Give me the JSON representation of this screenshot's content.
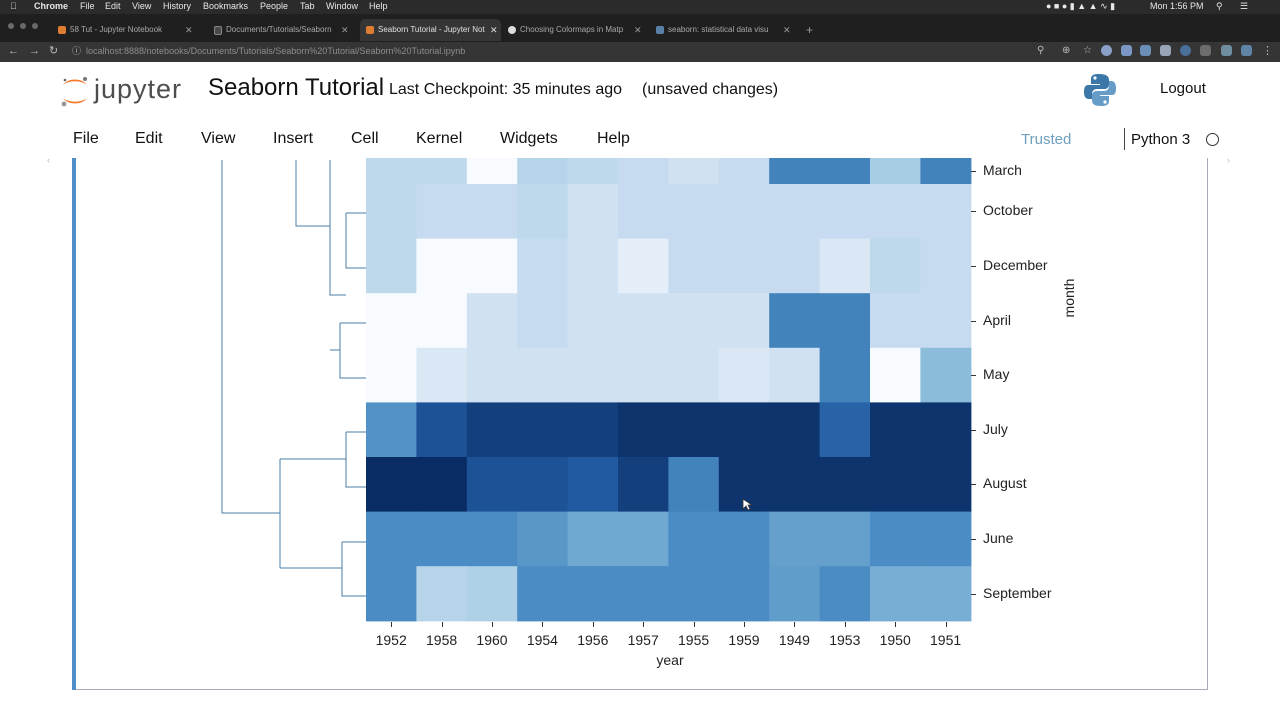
{
  "menubar": {
    "app": "Chrome",
    "items": [
      "File",
      "Edit",
      "View",
      "History",
      "Bookmarks",
      "People",
      "Tab",
      "Window",
      "Help"
    ],
    "clock": "Mon 1:56 PM"
  },
  "tabs": [
    {
      "title": "58 Tut - Jupyter Notebook",
      "active": false
    },
    {
      "title": "Documents/Tutorials/Seaborn",
      "active": false
    },
    {
      "title": "Seaborn Tutorial - Jupyter Not",
      "active": true
    },
    {
      "title": "Choosing Colormaps in Matp",
      "active": false
    },
    {
      "title": "seaborn: statistical data visu",
      "active": false
    }
  ],
  "browser": {
    "url": "localhost:8888/notebooks/Documents/Tutorials/Seaborn%20Tutorial/Seaborn%20Tutorial.ipynb",
    "new_tab": "+"
  },
  "jupyter": {
    "logo_text": "jupyter",
    "notebook_title": "Seaborn Tutorial",
    "checkpoint": "Last Checkpoint: 35 minutes ago",
    "save_status": "(unsaved changes)",
    "logout": "Logout",
    "menu": [
      "File",
      "Edit",
      "View",
      "Insert",
      "Cell",
      "Kernel",
      "Widgets",
      "Help"
    ],
    "trusted": "Trusted",
    "kernel": "Python 3"
  },
  "chart_data": {
    "type": "heatmap",
    "variant": "clustermap (row dendrogram)",
    "colormap": "Blues",
    "xlabel": "year",
    "ylabel": "month",
    "x_tick_labels": [
      "1952",
      "1958",
      "1960",
      "1954",
      "1956",
      "1957",
      "1955",
      "1959",
      "1949",
      "1953",
      "1950",
      "1951"
    ],
    "rows": [
      {
        "label": "March",
        "values": [
          0.3,
          0.3,
          0.0,
          0.35,
          0.3,
          0.25,
          0.2,
          0.25,
          0.75,
          0.75,
          0.45,
          0.75
        ]
      },
      {
        "label": "October",
        "values": [
          0.3,
          0.25,
          0.25,
          0.3,
          0.2,
          0.25,
          0.25,
          0.25,
          0.25,
          0.25,
          0.25,
          0.25
        ]
      },
      {
        "label": "December",
        "values": [
          0.3,
          0.0,
          0.0,
          0.25,
          0.2,
          0.1,
          0.25,
          0.25,
          0.25,
          0.15,
          0.3,
          0.25
        ]
      },
      {
        "label": "April",
        "values": [
          0.0,
          0.0,
          0.2,
          0.25,
          0.2,
          0.2,
          0.2,
          0.2,
          0.75,
          0.75,
          0.25,
          0.25
        ]
      },
      {
        "label": "May",
        "values": [
          0.0,
          0.15,
          0.2,
          0.2,
          0.2,
          0.2,
          0.2,
          0.15,
          0.2,
          0.75,
          0.0,
          0.55
        ]
      },
      {
        "label": "July",
        "values": [
          0.7,
          0.9,
          0.95,
          0.95,
          0.95,
          0.98,
          0.98,
          0.98,
          0.98,
          0.85,
          0.98,
          0.98
        ]
      },
      {
        "label": "August",
        "values": [
          1.0,
          1.0,
          0.9,
          0.9,
          0.88,
          0.95,
          0.75,
          0.98,
          0.98,
          0.98,
          0.98,
          0.98
        ]
      },
      {
        "label": "June",
        "values": [
          0.72,
          0.72,
          0.72,
          0.68,
          0.62,
          0.62,
          0.72,
          0.72,
          0.65,
          0.65,
          0.72,
          0.72
        ]
      },
      {
        "label": "September",
        "values": [
          0.72,
          0.35,
          0.4,
          0.72,
          0.72,
          0.72,
          0.72,
          0.72,
          0.66,
          0.72,
          0.6,
          0.6
        ]
      }
    ]
  }
}
